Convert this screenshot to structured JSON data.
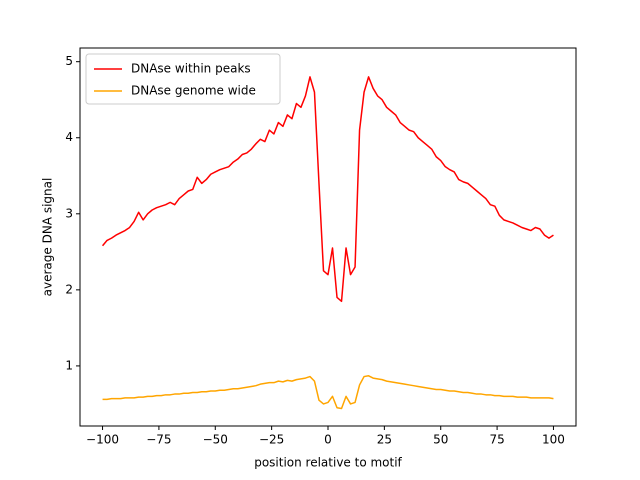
{
  "chart_data": {
    "type": "line",
    "xlabel": "position relative to motif",
    "ylabel": "average DNA signal",
    "x": [
      -100,
      -98,
      -96,
      -94,
      -92,
      -90,
      -88,
      -86,
      -84,
      -82,
      -80,
      -78,
      -76,
      -74,
      -72,
      -70,
      -68,
      -66,
      -64,
      -62,
      -60,
      -58,
      -56,
      -54,
      -52,
      -50,
      -48,
      -46,
      -44,
      -42,
      -40,
      -38,
      -36,
      -34,
      -32,
      -30,
      -28,
      -26,
      -24,
      -22,
      -20,
      -18,
      -16,
      -14,
      -12,
      -10,
      -8,
      -6,
      -4,
      -2,
      0,
      2,
      4,
      6,
      8,
      10,
      12,
      14,
      16,
      18,
      20,
      22,
      24,
      26,
      28,
      30,
      32,
      34,
      36,
      38,
      40,
      42,
      44,
      46,
      48,
      50,
      52,
      54,
      56,
      58,
      60,
      62,
      64,
      66,
      68,
      70,
      72,
      74,
      76,
      78,
      80,
      82,
      84,
      86,
      88,
      90,
      92,
      94,
      96,
      98,
      100
    ],
    "series": [
      {
        "name": "DNAse within peaks",
        "color": "#ff0000",
        "values": [
          2.58,
          2.65,
          2.68,
          2.72,
          2.75,
          2.78,
          2.82,
          2.9,
          3.02,
          2.92,
          3.0,
          3.05,
          3.08,
          3.1,
          3.12,
          3.15,
          3.12,
          3.2,
          3.25,
          3.3,
          3.32,
          3.48,
          3.4,
          3.45,
          3.52,
          3.55,
          3.58,
          3.6,
          3.62,
          3.68,
          3.72,
          3.78,
          3.8,
          3.85,
          3.92,
          3.98,
          3.95,
          4.1,
          4.05,
          4.2,
          4.15,
          4.3,
          4.25,
          4.45,
          4.4,
          4.55,
          4.8,
          4.6,
          3.4,
          2.25,
          2.2,
          2.55,
          1.9,
          1.85,
          2.55,
          2.2,
          2.3,
          4.1,
          4.6,
          4.8,
          4.65,
          4.55,
          4.5,
          4.4,
          4.35,
          4.3,
          4.2,
          4.15,
          4.1,
          4.08,
          4.0,
          3.95,
          3.9,
          3.85,
          3.75,
          3.7,
          3.62,
          3.58,
          3.55,
          3.45,
          3.42,
          3.4,
          3.35,
          3.3,
          3.25,
          3.2,
          3.12,
          3.1,
          2.98,
          2.92,
          2.9,
          2.88,
          2.85,
          2.82,
          2.8,
          2.78,
          2.82,
          2.8,
          2.72,
          2.68,
          2.72
        ]
      },
      {
        "name": "DNAse genome wide",
        "color": "#ffa500",
        "values": [
          0.56,
          0.56,
          0.57,
          0.57,
          0.57,
          0.58,
          0.58,
          0.58,
          0.59,
          0.59,
          0.6,
          0.6,
          0.61,
          0.61,
          0.62,
          0.62,
          0.63,
          0.63,
          0.64,
          0.64,
          0.65,
          0.65,
          0.66,
          0.66,
          0.67,
          0.67,
          0.68,
          0.68,
          0.69,
          0.7,
          0.7,
          0.71,
          0.72,
          0.73,
          0.74,
          0.76,
          0.77,
          0.78,
          0.78,
          0.8,
          0.79,
          0.81,
          0.8,
          0.82,
          0.83,
          0.84,
          0.86,
          0.8,
          0.55,
          0.5,
          0.52,
          0.6,
          0.45,
          0.44,
          0.6,
          0.5,
          0.52,
          0.75,
          0.86,
          0.87,
          0.84,
          0.83,
          0.82,
          0.8,
          0.79,
          0.78,
          0.77,
          0.76,
          0.75,
          0.74,
          0.73,
          0.72,
          0.71,
          0.7,
          0.69,
          0.69,
          0.68,
          0.67,
          0.67,
          0.66,
          0.65,
          0.65,
          0.64,
          0.63,
          0.63,
          0.62,
          0.62,
          0.61,
          0.61,
          0.6,
          0.6,
          0.6,
          0.59,
          0.59,
          0.59,
          0.58,
          0.58,
          0.58,
          0.58,
          0.58,
          0.57
        ]
      }
    ],
    "xlim": [
      -110,
      110
    ],
    "ylim": [
      0.21,
      5.18
    ],
    "xticks": [
      {
        "value": -100,
        "label": "−100"
      },
      {
        "value": -75,
        "label": "−75"
      },
      {
        "value": -50,
        "label": "−50"
      },
      {
        "value": -25,
        "label": "−25"
      },
      0,
      25,
      50,
      75,
      100
    ],
    "yticks": [
      1,
      2,
      3,
      4,
      5
    ],
    "legend": "upper left",
    "grid": false
  }
}
